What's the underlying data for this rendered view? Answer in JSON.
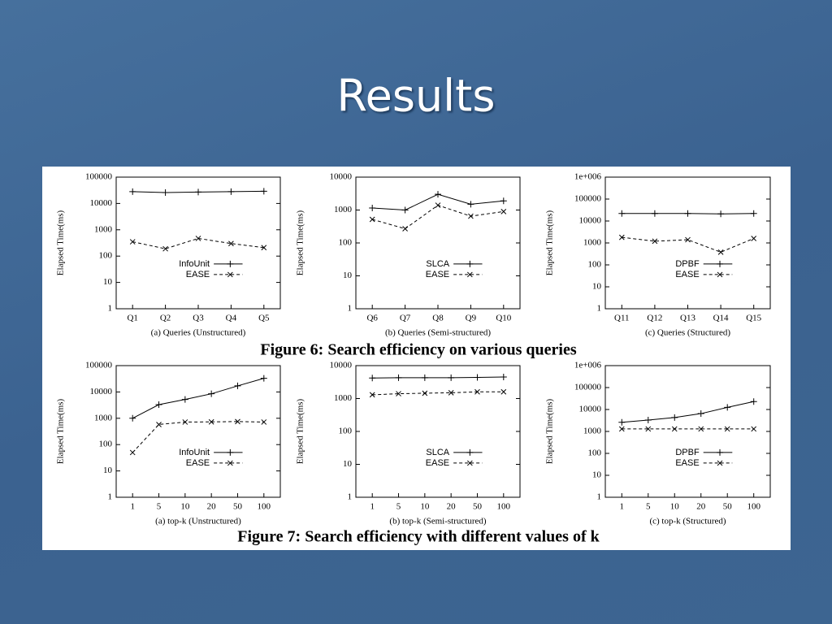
{
  "slide_title": "Results",
  "figure_captions": [
    "Figure 6: Search efficiency on various queries",
    "Figure 7: Search efficiency with different values of k"
  ],
  "chart_data": [
    {
      "type": "line",
      "xlabel": "(a) Queries (Unstructured)",
      "ylabel": "Elapsed Time(ms)",
      "categories": [
        "Q1",
        "Q2",
        "Q3",
        "Q4",
        "Q5"
      ],
      "log_scale": true,
      "ylim": [
        1,
        100000
      ],
      "yticks": [
        1,
        10,
        100,
        1000,
        10000,
        100000
      ],
      "legend": "lower center",
      "series": [
        {
          "name": "InfoUnit",
          "color": "#000000",
          "dashed": false,
          "marker": "+",
          "values": [
            28000,
            26000,
            27000,
            28000,
            29000
          ]
        },
        {
          "name": "EASE",
          "color": "#000000",
          "dashed": true,
          "marker": "x",
          "values": [
            350,
            190,
            470,
            300,
            210
          ]
        }
      ]
    },
    {
      "type": "line",
      "xlabel": "(b) Queries (Semi-structured)",
      "ylabel": "Elapsed Time(ms)",
      "categories": [
        "Q6",
        "Q7",
        "Q8",
        "Q9",
        "Q10"
      ],
      "log_scale": true,
      "ylim": [
        1,
        10000
      ],
      "yticks": [
        1,
        10,
        100,
        1000,
        10000
      ],
      "legend": "lower center",
      "series": [
        {
          "name": "SLCA",
          "color": "#000000",
          "dashed": false,
          "marker": "+",
          "values": [
            1150,
            1000,
            3000,
            1500,
            1900
          ]
        },
        {
          "name": "EASE",
          "color": "#000000",
          "dashed": true,
          "marker": "x",
          "values": [
            520,
            270,
            1400,
            650,
            900
          ]
        }
      ]
    },
    {
      "type": "line",
      "xlabel": "(c) Queries (Structured)",
      "ylabel": "Elapsed Time(ms)",
      "categories": [
        "Q11",
        "Q12",
        "Q13",
        "Q14",
        "Q15"
      ],
      "log_scale": true,
      "ylim": [
        1,
        1000000
      ],
      "yticks": [
        1,
        10,
        100,
        1000,
        10000,
        100000,
        {
          "value": 1000000,
          "label": "1e+006"
        }
      ],
      "legend": "lower center",
      "series": [
        {
          "name": "DPBF",
          "color": "#000000",
          "dashed": false,
          "marker": "+",
          "values": [
            22000,
            22000,
            22000,
            21000,
            22000
          ]
        },
        {
          "name": "EASE",
          "color": "#000000",
          "dashed": true,
          "marker": "x",
          "values": [
            1800,
            1200,
            1400,
            380,
            1600
          ]
        }
      ]
    },
    {
      "type": "line",
      "xlabel": "(a) top-k (Unstructured)",
      "ylabel": "Elapsed Time(ms)",
      "categories": [
        "1",
        "5",
        "10",
        "20",
        "50",
        "100"
      ],
      "log_scale": true,
      "ylim": [
        1,
        100000
      ],
      "yticks": [
        1,
        10,
        100,
        1000,
        10000,
        100000
      ],
      "legend": "lower center",
      "series": [
        {
          "name": "InfoUnit",
          "color": "#000000",
          "dashed": false,
          "marker": "+",
          "values": [
            1000,
            3300,
            5200,
            8500,
            17000,
            33000
          ]
        },
        {
          "name": "EASE",
          "color": "#000000",
          "dashed": true,
          "marker": "x",
          "values": [
            50,
            580,
            720,
            730,
            750,
            720
          ]
        }
      ]
    },
    {
      "type": "line",
      "xlabel": "(b) top-k (Semi-structured)",
      "ylabel": "Elapsed Time(ms)",
      "categories": [
        "1",
        "5",
        "10",
        "20",
        "50",
        "100"
      ],
      "log_scale": true,
      "ylim": [
        1,
        10000
      ],
      "yticks": [
        1,
        10,
        100,
        1000,
        10000
      ],
      "legend": "lower center",
      "series": [
        {
          "name": "SLCA",
          "color": "#000000",
          "dashed": false,
          "marker": "+",
          "values": [
            4200,
            4300,
            4300,
            4300,
            4400,
            4500
          ]
        },
        {
          "name": "EASE",
          "color": "#000000",
          "dashed": true,
          "marker": "x",
          "values": [
            1300,
            1400,
            1450,
            1500,
            1600,
            1600
          ]
        }
      ]
    },
    {
      "type": "line",
      "xlabel": "(c) top-k (Structured)",
      "ylabel": "Elapsed Time(ms)",
      "categories": [
        "1",
        "5",
        "10",
        "20",
        "50",
        "100"
      ],
      "log_scale": true,
      "ylim": [
        1,
        1000000
      ],
      "yticks": [
        1,
        10,
        100,
        1000,
        10000,
        100000,
        {
          "value": 1000000,
          "label": "1e+006"
        }
      ],
      "legend": "lower center",
      "series": [
        {
          "name": "DPBF",
          "color": "#000000",
          "dashed": false,
          "marker": "+",
          "values": [
            2600,
            3300,
            4300,
            6500,
            12500,
            23000
          ]
        },
        {
          "name": "EASE",
          "color": "#000000",
          "dashed": true,
          "marker": "x",
          "values": [
            1300,
            1300,
            1300,
            1300,
            1300,
            1300
          ]
        }
      ]
    }
  ]
}
